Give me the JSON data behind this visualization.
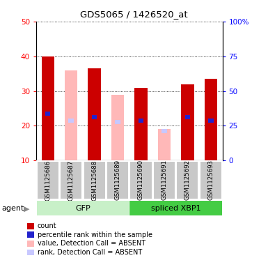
{
  "title": "GDS5065 / 1426520_at",
  "samples": [
    "GSM1125686",
    "GSM1125687",
    "GSM1125688",
    "GSM1125689",
    "GSM1125690",
    "GSM1125691",
    "GSM1125692",
    "GSM1125693"
  ],
  "count_values": [
    40.0,
    null,
    36.5,
    null,
    31.0,
    null,
    32.0,
    33.5
  ],
  "rank_values": [
    23.5,
    null,
    22.5,
    null,
    21.5,
    null,
    22.5,
    21.5
  ],
  "absent_value": [
    null,
    36.0,
    null,
    29.0,
    null,
    19.0,
    null,
    null
  ],
  "absent_rank": [
    null,
    21.5,
    null,
    21.0,
    null,
    18.5,
    null,
    null
  ],
  "ylim_left": [
    10,
    50
  ],
  "ylim_right": [
    0,
    100
  ],
  "yticks_left": [
    10,
    20,
    30,
    40,
    50
  ],
  "yticks_right": [
    0,
    25,
    50,
    75,
    100
  ],
  "ytick_labels_right": [
    "0",
    "25",
    "50",
    "75",
    "100%"
  ],
  "group_colors_light": {
    "GFP": "#d4f5d4",
    "spliced XBP1": "#50cc50"
  },
  "color_red": "#cc0000",
  "color_blue": "#2222cc",
  "color_pink": "#ffb8b8",
  "color_lightblue": "#c8c8ff",
  "color_gray": "#c8c8c8",
  "color_white": "#ffffff",
  "bar_width": 0.55,
  "rank_bar_width": 0.22,
  "rank_bar_height": 1.2,
  "legend_items": [
    {
      "label": "count",
      "color": "#cc0000"
    },
    {
      "label": "percentile rank within the sample",
      "color": "#2222cc"
    },
    {
      "label": "value, Detection Call = ABSENT",
      "color": "#ffb8b8"
    },
    {
      "label": "rank, Detection Call = ABSENT",
      "color": "#c8c8ff"
    }
  ],
  "agent_label": "agent",
  "group_label_GFP": "GFP",
  "group_label_XBP1": "spliced XBP1",
  "gfp_group_color": "#c8f0c8",
  "xbp1_group_color": "#44cc44"
}
